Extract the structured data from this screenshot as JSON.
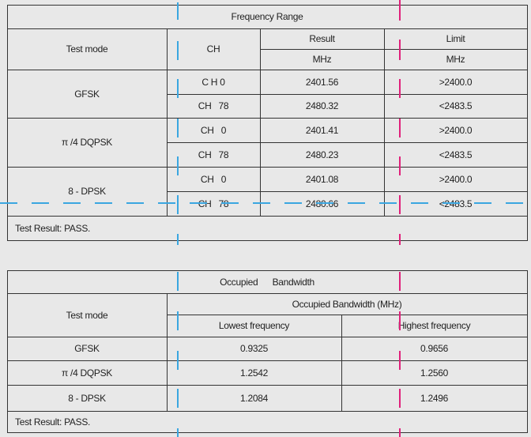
{
  "frequency_range": {
    "title": "Frequency Range",
    "headers": {
      "test_mode": "Test mode",
      "ch": "CH",
      "result": "Result",
      "result_unit": "MHz",
      "limit": "Limit",
      "limit_unit": "MHz"
    },
    "groups": [
      {
        "mode": "GFSK",
        "rows": [
          {
            "ch": "C H 0",
            "result": "2401.56",
            "limit": ">2400.0"
          },
          {
            "ch": "CH   78",
            "result": "2480.32",
            "limit": "<2483.5"
          }
        ]
      },
      {
        "mode": "π /4 DQPSK",
        "rows": [
          {
            "ch": "CH   0",
            "result": "2401.41",
            "limit": ">2400.0"
          },
          {
            "ch": "CH   78",
            "result": "2480.23",
            "limit": "<2483.5"
          }
        ]
      },
      {
        "mode": "8 - DPSK",
        "rows": [
          {
            "ch": "CH   0",
            "result": "2401.08",
            "limit": ">2400.0"
          },
          {
            "ch": "CH   78",
            "result": "2480.66",
            "limit": "<2483.5"
          }
        ]
      }
    ],
    "test_result": "Test Result: PASS."
  },
  "occupied_bandwidth": {
    "title": "Occupied      Bandwidth",
    "headers": {
      "test_mode": "Test mode",
      "group": "Occupied Bandwidth (MHz)",
      "lowest": "Lowest frequency",
      "highest": "Highest frequency"
    },
    "rows": [
      {
        "mode": "GFSK",
        "lowest": "0.9325",
        "highest": "0.9656"
      },
      {
        "mode": "π /4 DQPSK",
        "lowest": "1.2542",
        "highest": "1.2560"
      },
      {
        "mode": "8 - DPSK",
        "lowest": "1.2084",
        "highest": "1.2496"
      }
    ],
    "test_result": "Test Result: PASS."
  },
  "guide_colors": {
    "blue": "#3aa6e0",
    "magenta": "#e0207a"
  }
}
